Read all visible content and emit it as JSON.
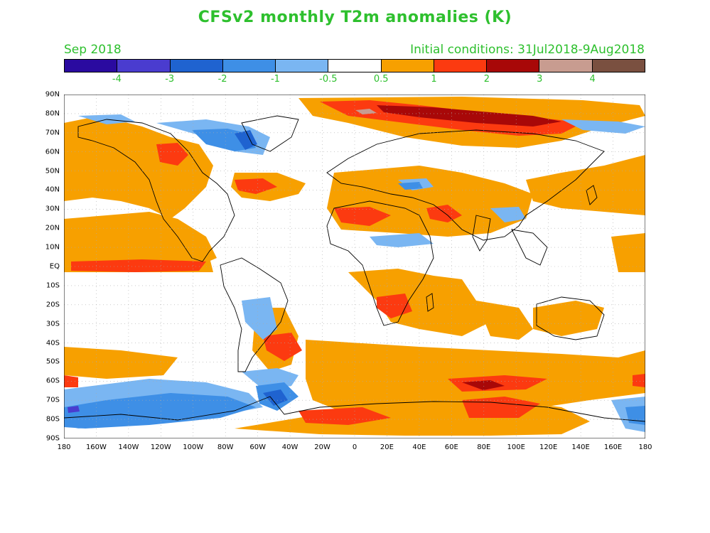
{
  "title": "CFSv2 monthly T2m anomalies (K)",
  "subtitle_left": "Sep 2018",
  "subtitle_right": "Initial conditions: 31Jul2018-9Aug2018",
  "colorbar": {
    "colors": [
      "#2a0aa0",
      "#4a3ccf",
      "#1f63d0",
      "#3e8fe6",
      "#7ab6f2",
      "#ffffff",
      "#f7a000",
      "#fc3a10",
      "#a80808",
      "#c89c90",
      "#7a5040"
    ],
    "labels": [
      "-4",
      "-3",
      "-2",
      "-1",
      "-0.5",
      "0.5",
      "1",
      "2",
      "3",
      "4"
    ]
  },
  "axes": {
    "lat_labels": [
      "90N",
      "80N",
      "70N",
      "60N",
      "50N",
      "40N",
      "30N",
      "20N",
      "10N",
      "EQ",
      "10S",
      "20S",
      "30S",
      "40S",
      "50S",
      "60S",
      "70S",
      "80S",
      "90S"
    ],
    "lon_labels": [
      "180",
      "160W",
      "140W",
      "120W",
      "100W",
      "80W",
      "60W",
      "40W",
      "20W",
      "0",
      "20E",
      "40E",
      "60E",
      "80E",
      "100E",
      "120E",
      "140E",
      "160E",
      "180"
    ]
  },
  "colors": {
    "text_green": "#2ec02e",
    "orange": "#f7a000",
    "red": "#fc3a10",
    "darkred": "#a80808",
    "pink": "#c89c90",
    "lightblue": "#7ab6f2",
    "blue": "#3e8fe6",
    "midblue": "#1f63d0",
    "violet": "#4a3ccf"
  }
}
